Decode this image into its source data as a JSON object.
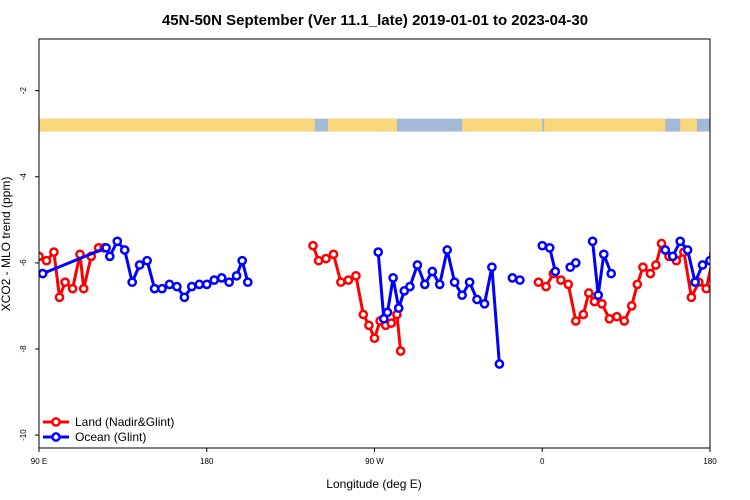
{
  "chart_data": {
    "type": "line",
    "title": "45N-50N September (Ver 11.1_late)   2019-01-01 to 2023-04-30",
    "xlabel": "Longitude (deg E)",
    "ylabel": "XCO2 - MLO trend (ppm)",
    "xlim": [
      90,
      450
    ],
    "ylim": [
      -10.3,
      -0.8
    ],
    "x_ticks": [
      {
        "value": 90,
        "label": "90 E"
      },
      {
        "value": 180,
        "label": "180"
      },
      {
        "value": 270,
        "label": "90 W"
      },
      {
        "value": 360,
        "label": "0"
      },
      {
        "value": 450,
        "label": "180"
      }
    ],
    "y_ticks": [
      {
        "value": -2,
        "label": "-2"
      },
      {
        "value": -4,
        "label": "-4"
      },
      {
        "value": -6,
        "label": "-6"
      },
      {
        "value": -8,
        "label": "-8"
      },
      {
        "value": -10,
        "label": "-10"
      }
    ],
    "land_ocean_band": {
      "y_range": [
        -2.95,
        -2.65
      ],
      "ocean_color": "#a4b8d8",
      "land_color": "#f9d77b",
      "land_ranges": [
        [
          90,
          238
        ],
        [
          245,
          282
        ],
        [
          317,
          360
        ],
        [
          361,
          426
        ],
        [
          434,
          443
        ]
      ]
    },
    "series": [
      {
        "name": "Land (Nadir&Glint)",
        "color": "#ff0000",
        "segments": [
          [
            [
              90,
              -5.85
            ],
            [
              94,
              -5.95
            ],
            [
              98,
              -5.75
            ],
            [
              101,
              -6.8
            ],
            [
              104,
              -6.45
            ],
            [
              108,
              -6.6
            ],
            [
              112,
              -5.8
            ],
            [
              114,
              -6.6
            ],
            [
              118,
              -5.85
            ],
            [
              122,
              -5.65
            ],
            [
              125,
              -5.65
            ]
          ],
          [
            [
              237,
              -5.6
            ],
            [
              240,
              -5.95
            ],
            [
              244,
              -5.9
            ],
            [
              248,
              -5.8
            ],
            [
              252,
              -6.45
            ],
            [
              256,
              -6.4
            ],
            [
              260,
              -6.3
            ],
            [
              264,
              -7.2
            ],
            [
              267,
              -7.45
            ],
            [
              270,
              -7.75
            ],
            [
              273,
              -7.35
            ],
            [
              276,
              -7.45
            ],
            [
              279,
              -7.4
            ],
            [
              282,
              -7.2
            ],
            [
              284,
              -8.05
            ]
          ],
          [
            [
              358,
              -6.45
            ],
            [
              362,
              -6.55
            ],
            [
              366,
              -6.25
            ],
            [
              370,
              -6.4
            ],
            [
              374,
              -6.5
            ],
            [
              378,
              -7.35
            ],
            [
              382,
              -7.2
            ],
            [
              385,
              -6.7
            ],
            [
              388,
              -6.9
            ],
            [
              392,
              -6.95
            ],
            [
              396,
              -7.3
            ],
            [
              400,
              -7.25
            ],
            [
              404,
              -7.35
            ],
            [
              408,
              -7.0
            ],
            [
              411,
              -6.5
            ],
            [
              414,
              -6.1
            ],
            [
              418,
              -6.25
            ],
            [
              421,
              -6.05
            ],
            [
              424,
              -5.55
            ],
            [
              428,
              -5.85
            ],
            [
              432,
              -5.95
            ],
            [
              436,
              -5.75
            ],
            [
              440,
              -6.8
            ],
            [
              444,
              -6.45
            ],
            [
              448,
              -6.6
            ],
            [
              452,
              -5.8
            ],
            [
              455,
              -6.55
            ],
            [
              459,
              -5.85
            ],
            [
              463,
              -5.75
            ],
            [
              466,
              -5.65
            ]
          ]
        ]
      },
      {
        "name": "Ocean (Glint)",
        "color": "#0000ff",
        "segments": [
          [
            [
              92,
              -6.25
            ],
            [
              126,
              -5.65
            ],
            [
              128,
              -5.85
            ],
            [
              132,
              -5.5
            ],
            [
              136,
              -5.7
            ],
            [
              140,
              -6.45
            ],
            [
              144,
              -6.05
            ],
            [
              148,
              -5.95
            ],
            [
              152,
              -6.6
            ],
            [
              156,
              -6.6
            ],
            [
              160,
              -6.5
            ],
            [
              164,
              -6.55
            ],
            [
              168,
              -6.8
            ],
            [
              172,
              -6.55
            ],
            [
              176,
              -6.5
            ],
            [
              180,
              -6.5
            ],
            [
              184,
              -6.4
            ],
            [
              188,
              -6.35
            ],
            [
              192,
              -6.45
            ],
            [
              196,
              -6.3
            ],
            [
              199,
              -5.95
            ],
            [
              202,
              -6.45
            ]
          ],
          [
            [
              272,
              -5.75
            ],
            [
              275,
              -7.3
            ]
          ],
          [
            [
              277,
              -7.15
            ],
            [
              280,
              -6.35
            ],
            [
              283,
              -7.05
            ],
            [
              286,
              -6.65
            ],
            [
              289,
              -6.55
            ],
            [
              293,
              -6.05
            ],
            [
              297,
              -6.5
            ],
            [
              301,
              -6.2
            ],
            [
              305,
              -6.5
            ],
            [
              309,
              -5.7
            ],
            [
              313,
              -6.45
            ],
            [
              317,
              -6.75
            ],
            [
              321,
              -6.45
            ],
            [
              325,
              -6.85
            ],
            [
              329,
              -6.95
            ],
            [
              333,
              -6.1
            ],
            [
              337,
              -8.35
            ]
          ],
          [
            [
              344,
              -6.35
            ],
            [
              348,
              -6.4
            ]
          ],
          [
            [
              360,
              -5.6
            ],
            [
              364,
              -5.65
            ],
            [
              367,
              -6.2
            ]
          ],
          [
            [
              375,
              -6.1
            ],
            [
              378,
              -6.0
            ]
          ],
          [
            [
              387,
              -5.5
            ],
            [
              390,
              -6.75
            ],
            [
              393,
              -5.8
            ],
            [
              397,
              -6.25
            ]
          ],
          [
            [
              426,
              -5.7
            ],
            [
              430,
              -5.85
            ],
            [
              434,
              -5.5
            ],
            [
              438,
              -5.7
            ],
            [
              442,
              -6.45
            ],
            [
              446,
              -6.05
            ],
            [
              450,
              -5.95
            ],
            [
              454,
              -6.6
            ],
            [
              458,
              -6.6
            ]
          ]
        ]
      }
    ],
    "legend": {
      "placement": "bottom-left",
      "entries": [
        {
          "label": "Land (Nadir&Glint)",
          "color": "#ff0000"
        },
        {
          "label": "Ocean (Glint)",
          "color": "#0000ff"
        }
      ]
    },
    "grid": false
  }
}
